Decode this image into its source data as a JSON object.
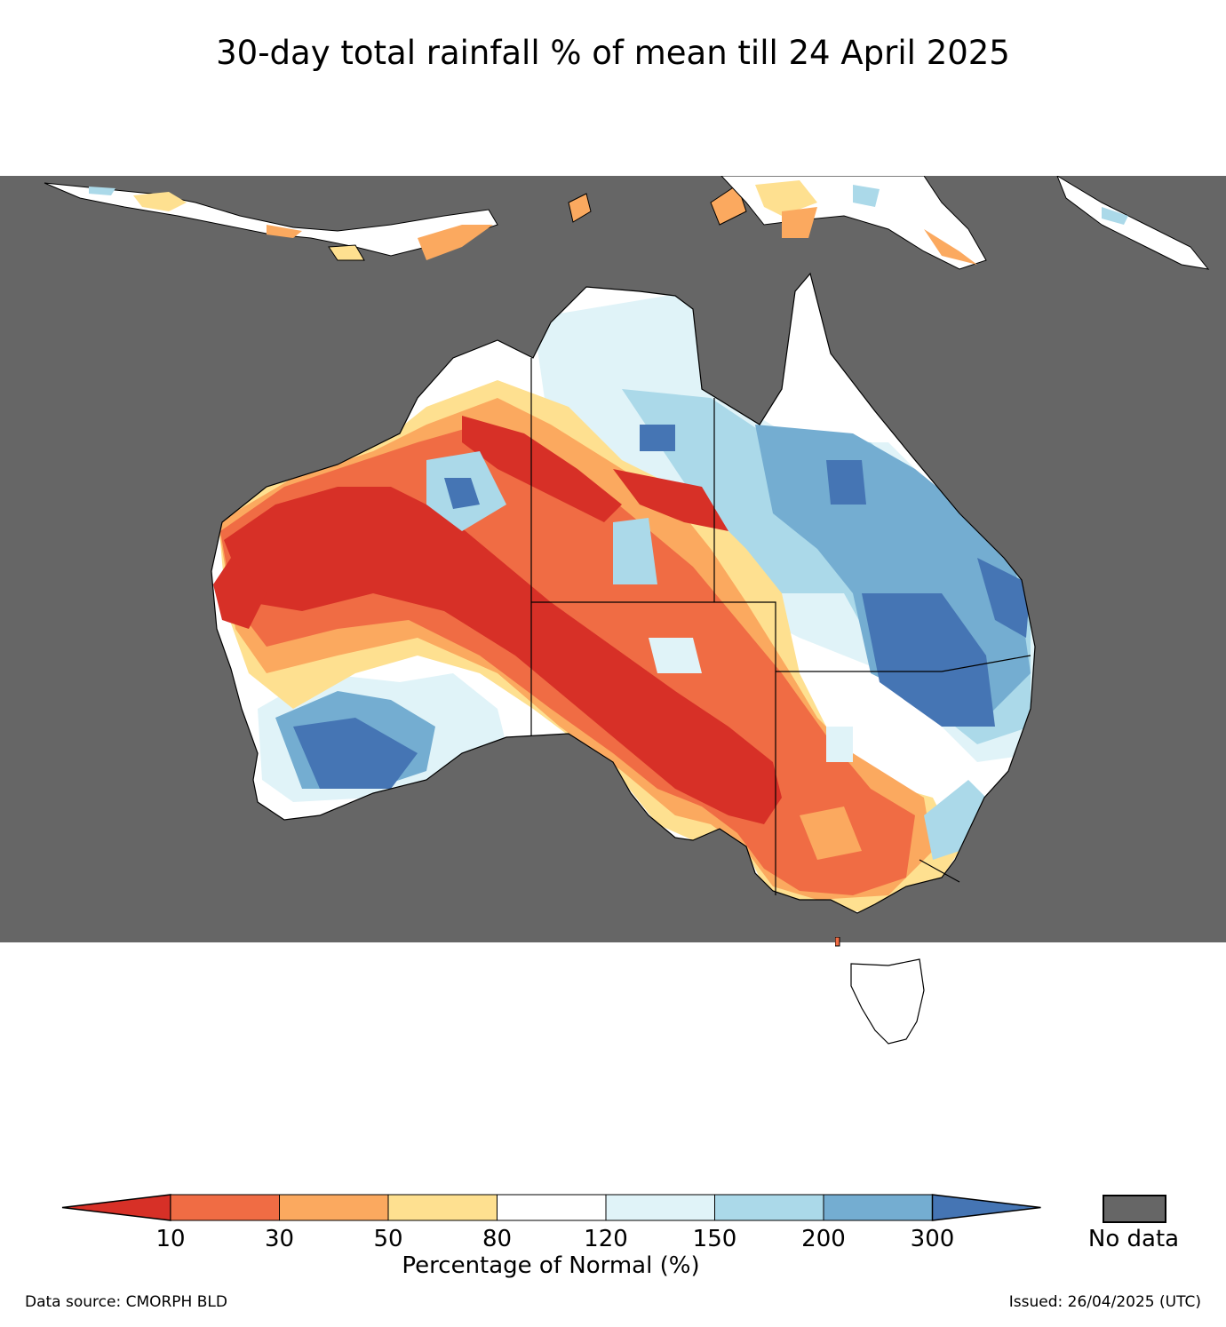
{
  "title": "30-day total rainfall % of mean till 24 April 2025",
  "legend": {
    "title": "Percentage of Normal (%)",
    "ticks": [
      "10",
      "30",
      "50",
      "80",
      "120",
      "150",
      "200",
      "300"
    ],
    "bins": [
      {
        "range": "<10",
        "color": "#d73027"
      },
      {
        "range": "10-30",
        "color": "#f06c44"
      },
      {
        "range": "30-50",
        "color": "#fba95f"
      },
      {
        "range": "50-80",
        "color": "#fee090"
      },
      {
        "range": "80-120",
        "color": "#ffffff"
      },
      {
        "range": "120-150",
        "color": "#e0f3f8"
      },
      {
        "range": "150-200",
        "color": "#abd9e9"
      },
      {
        "range": "200-300",
        "color": "#74add1"
      },
      {
        "range": ">300",
        "color": "#4575b4"
      }
    ],
    "no_data_label": "No data",
    "no_data_color": "#666666"
  },
  "footer": {
    "source": "Data source: CMORPH BLD",
    "issued": "Issued: 26/04/2025 (UTC)"
  }
}
